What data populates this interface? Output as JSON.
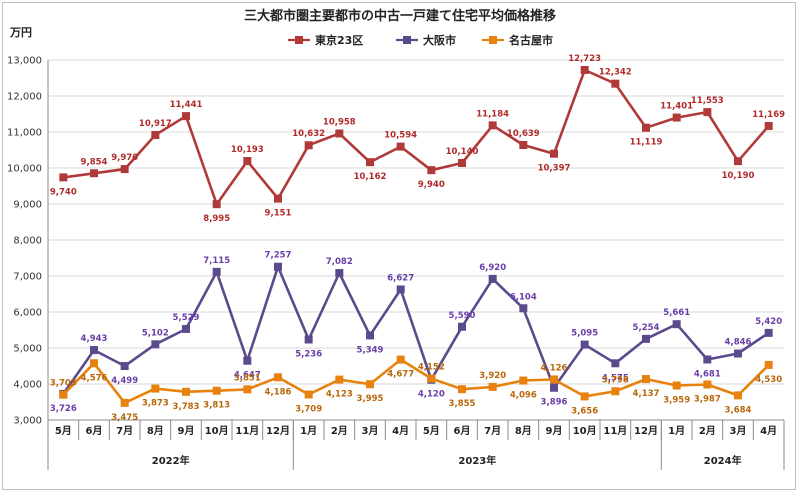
{
  "chart_data": {
    "type": "line",
    "title": "三大都市圏主要都市の中古一戸建て住宅平均価格推移",
    "ylabel": "万円",
    "ylim": [
      3000,
      13000
    ],
    "ytick_step": 1000,
    "categories": [
      "5月",
      "6月",
      "7月",
      "8月",
      "9月",
      "10月",
      "11月",
      "12月",
      "1月",
      "2月",
      "3月",
      "4月",
      "5月",
      "6月",
      "7月",
      "8月",
      "9月",
      "10月",
      "11月",
      "12月",
      "1月",
      "2月",
      "3月",
      "4月"
    ],
    "years": [
      {
        "label": "2022年",
        "start": 0,
        "end": 7
      },
      {
        "label": "2023年",
        "start": 8,
        "end": 19
      },
      {
        "label": "2024年",
        "start": 20,
        "end": 23
      }
    ],
    "legend_position": "top",
    "series": [
      {
        "name": "東京23区",
        "color": "#b03a3a",
        "label_color": "#b02a2a",
        "marker": "square",
        "values": [
          9740,
          9854,
          9970,
          10917,
          11441,
          8995,
          10193,
          9151,
          10632,
          10958,
          10162,
          10594,
          9940,
          10140,
          11184,
          10639,
          10397,
          12723,
          12342,
          11119,
          11401,
          11553,
          10190,
          11169
        ],
        "labels": [
          "9,740",
          "9,854",
          "9,970",
          "10,917",
          "11,441",
          "8,995",
          "10,193",
          "9,151",
          "10,632",
          "10,958",
          "10,162",
          "10,594",
          "9,940",
          "10,140",
          "11,184",
          "10,639",
          "10,397",
          "12,723",
          "12,342",
          "11,119",
          "11,401",
          "11,553",
          "10,190",
          "11,169"
        ]
      },
      {
        "name": "大阪市",
        "color": "#5b4a8c",
        "label_color": "#6a3ea8",
        "marker": "square",
        "values": [
          3726,
          4943,
          4499,
          5102,
          5529,
          7115,
          4647,
          7257,
          5236,
          7082,
          5349,
          6627,
          4120,
          5590,
          6920,
          6104,
          3896,
          5095,
          4575,
          5254,
          5661,
          4681,
          4846,
          5420
        ],
        "labels": [
          "3,726",
          "4,943",
          "4,499",
          "5,102",
          "5,529",
          "7,115",
          "4,647",
          "7,257",
          "5,236",
          "7,082",
          "5,349",
          "6,627",
          "4,120",
          "5,590",
          "6,920",
          "6,104",
          "3,896",
          "5,095",
          "4,575",
          "5,254",
          "5,661",
          "4,681",
          "4,846",
          "5,420"
        ]
      },
      {
        "name": "名古屋市",
        "color": "#e8820e",
        "label_color": "#b8670a",
        "marker": "square",
        "values": [
          3703,
          4576,
          3475,
          3873,
          3783,
          3813,
          3851,
          4186,
          3709,
          4123,
          3995,
          4677,
          4152,
          3855,
          3920,
          4096,
          4126,
          3656,
          3798,
          4137,
          3959,
          3987,
          3684,
          4530
        ],
        "labels": [
          "3,703",
          "4,576",
          "3,475",
          "3,873",
          "3,783",
          "3,813",
          "3,851",
          "4,186",
          "3,709",
          "4,123",
          "3,995",
          "4,677",
          "4,152",
          "3,855",
          "3,920",
          "4,096",
          "4,126",
          "3,656",
          "3,798",
          "4,137",
          "3,959",
          "3,987",
          "3,684",
          "4,530"
        ]
      }
    ]
  }
}
